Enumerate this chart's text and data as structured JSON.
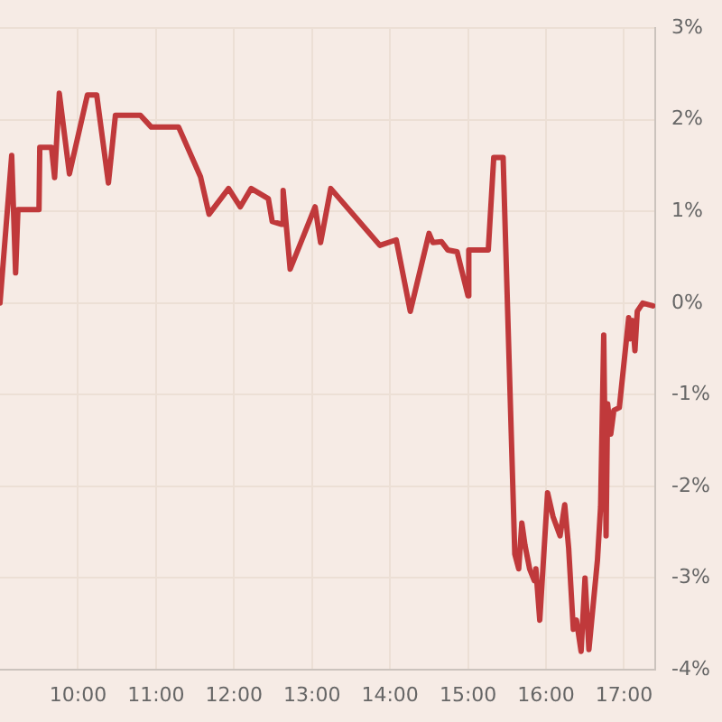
{
  "chart_data": {
    "type": "line",
    "x": [
      9.0,
      9.15,
      9.2,
      9.23,
      9.5,
      9.51,
      9.66,
      9.7,
      9.76,
      9.89,
      10.12,
      10.24,
      10.39,
      10.48,
      10.8,
      10.94,
      11.29,
      11.57,
      11.68,
      11.93,
      12.08,
      12.22,
      12.44,
      12.49,
      12.61,
      12.63,
      12.72,
      13.04,
      13.11,
      13.24,
      13.87,
      14.08,
      14.26,
      14.5,
      14.55,
      14.66,
      14.74,
      14.86,
      15.0,
      15.01,
      15.26,
      15.33,
      15.45,
      15.6,
      15.65,
      15.69,
      15.73,
      15.79,
      15.85,
      15.87,
      15.92,
      16.02,
      16.09,
      16.18,
      16.24,
      16.29,
      16.35,
      16.39,
      16.45,
      16.5,
      16.55,
      16.66,
      16.7,
      16.74,
      16.77,
      16.79,
      16.83,
      16.87,
      16.94,
      17.06,
      17.08,
      17.11,
      17.14,
      17.17,
      17.24,
      17.37
    ],
    "values": [
      0.0,
      1.61,
      0.33,
      1.02,
      1.02,
      1.7,
      1.7,
      1.37,
      2.29,
      1.41,
      2.27,
      2.27,
      1.31,
      2.05,
      2.05,
      1.92,
      1.92,
      1.38,
      0.97,
      1.25,
      1.05,
      1.25,
      1.14,
      0.89,
      0.86,
      1.23,
      0.37,
      1.05,
      0.66,
      1.25,
      0.63,
      0.69,
      -0.09,
      0.76,
      0.66,
      0.67,
      0.58,
      0.56,
      0.08,
      0.58,
      0.58,
      1.59,
      1.59,
      -2.74,
      -2.9,
      -2.4,
      -2.64,
      -2.9,
      -3.03,
      -2.9,
      -3.46,
      -2.07,
      -2.33,
      -2.54,
      -2.2,
      -2.67,
      -3.56,
      -3.46,
      -3.8,
      -3.0,
      -3.78,
      -2.8,
      -2.22,
      -0.35,
      -2.54,
      -1.1,
      -1.43,
      -1.17,
      -1.14,
      -0.16,
      -0.39,
      -0.19,
      -0.52,
      -0.09,
      0.0,
      -0.03
    ],
    "color": "#c0393b",
    "xlim": [
      9,
      17.4
    ],
    "xticks": [
      {
        "value": 10,
        "label": "10:00"
      },
      {
        "value": 11,
        "label": "11:00"
      },
      {
        "value": 12,
        "label": "12:00"
      },
      {
        "value": 13,
        "label": "13:00"
      },
      {
        "value": 14,
        "label": "14:00"
      },
      {
        "value": 15,
        "label": "15:00"
      },
      {
        "value": 16,
        "label": "16:00"
      },
      {
        "value": 17,
        "label": "17:00"
      }
    ],
    "ylim": [
      -4,
      3
    ],
    "yticks": [
      {
        "value": 3,
        "label": "3%"
      },
      {
        "value": 2,
        "label": "2%"
      },
      {
        "value": 1,
        "label": "1%"
      },
      {
        "value": 0,
        "label": "0%"
      },
      {
        "value": -1,
        "label": "-1%"
      },
      {
        "value": -2,
        "label": "-2%"
      },
      {
        "value": -3,
        "label": "-3%"
      },
      {
        "value": -4,
        "label": "-4%"
      }
    ],
    "grid": true
  }
}
